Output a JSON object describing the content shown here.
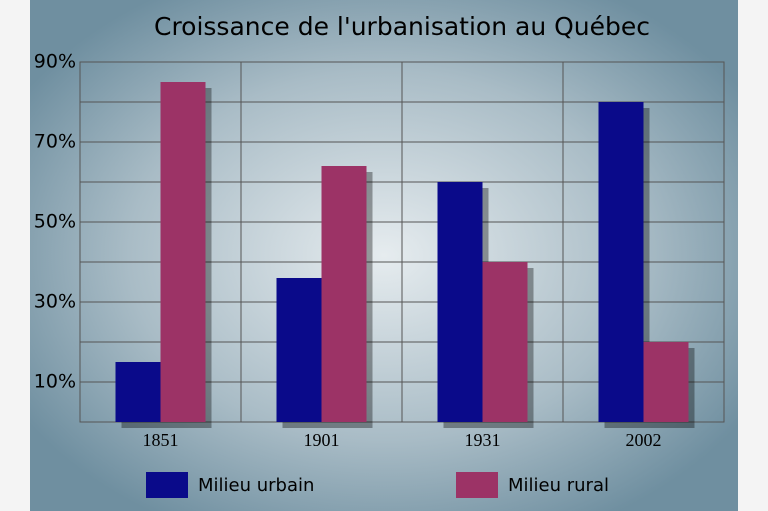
{
  "chart_data": {
    "type": "bar",
    "title": "Croissance de l'urbanisation au Québec",
    "categories": [
      "1851",
      "1901",
      "1931",
      "2002"
    ],
    "series": [
      {
        "name": "Milieu urbain",
        "color": "#0a0a8a",
        "values": [
          15,
          36,
          60,
          80
        ]
      },
      {
        "name": "Milieu rural",
        "color": "#9c3366",
        "values": [
          85,
          64,
          40,
          20
        ]
      }
    ],
    "ylim": [
      0,
      90
    ],
    "yticks": [
      {
        "value": 10,
        "label": "10%"
      },
      {
        "value": 30,
        "label": "30%"
      },
      {
        "value": 50,
        "label": "50%"
      },
      {
        "value": 70,
        "label": "70%"
      },
      {
        "value": 90,
        "label": "90%"
      }
    ],
    "yminor_grid": [
      20,
      40,
      60,
      80
    ],
    "grid": true
  }
}
